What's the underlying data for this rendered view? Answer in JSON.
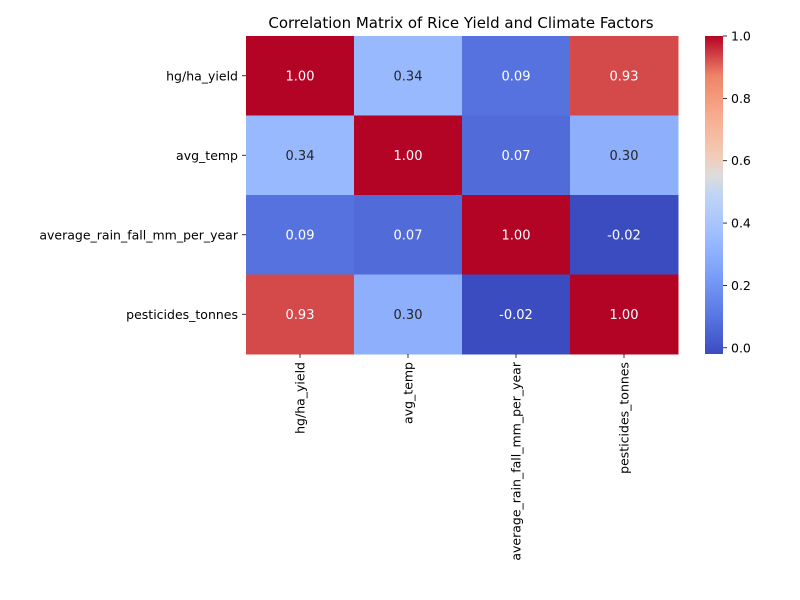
{
  "chart_data": {
    "type": "heatmap",
    "title": "Correlation Matrix of Rice Yield and Climate Factors",
    "row_labels": [
      "hg/ha_yield",
      "avg_temp",
      "average_rain_fall_mm_per_year",
      "pesticides_tonnes"
    ],
    "col_labels": [
      "hg/ha_yield",
      "avg_temp",
      "average_rain_fall_mm_per_year",
      "pesticides_tonnes"
    ],
    "values": [
      [
        1.0,
        0.34,
        0.09,
        0.93
      ],
      [
        0.34,
        1.0,
        0.07,
        0.3
      ],
      [
        0.09,
        0.07,
        1.0,
        -0.02
      ],
      [
        0.93,
        0.3,
        -0.02,
        1.0
      ]
    ],
    "value_format": "0.00",
    "colormap": "coolwarm",
    "vmin": -0.02,
    "vmax": 1.0,
    "colorbar_ticks": [
      0.0,
      0.2,
      0.4,
      0.6,
      0.8,
      1.0
    ],
    "colorbar_tick_labels": [
      "0.0",
      "0.2",
      "0.4",
      "0.6",
      "0.8",
      "1.0"
    ]
  }
}
